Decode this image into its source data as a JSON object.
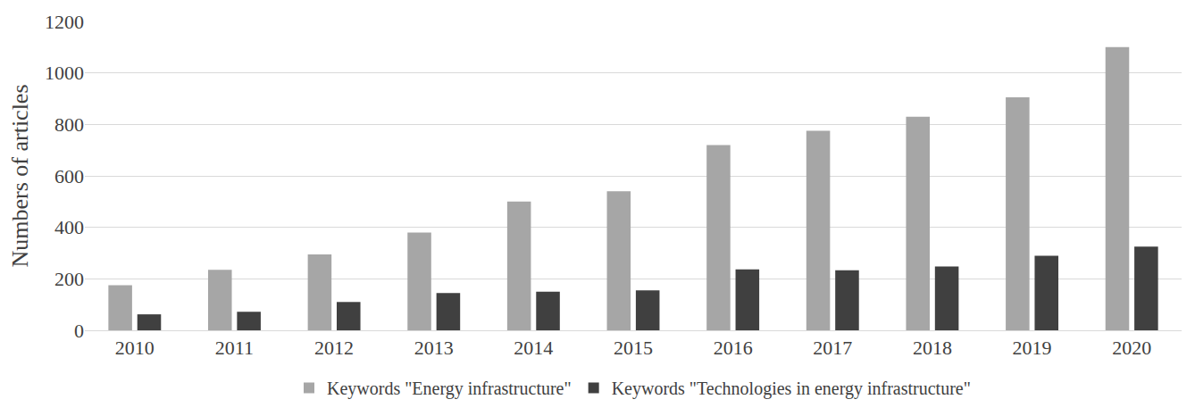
{
  "chart_data": {
    "type": "bar",
    "y_label": "Numbers of articles",
    "categories": [
      "2010",
      "2011",
      "2012",
      "2013",
      "2014",
      "2015",
      "2016",
      "2017",
      "2018",
      "2019",
      "2020"
    ],
    "series": [
      {
        "name": "Keywords \"Energy infrastructure\"",
        "color": "#a6a6a6",
        "values": [
          175,
          235,
          295,
          380,
          500,
          540,
          720,
          775,
          830,
          905,
          1100
        ]
      },
      {
        "name": "Keywords \"Technologies in energy infrastructure\"",
        "color": "#404040",
        "values": [
          62,
          72,
          110,
          145,
          150,
          155,
          237,
          233,
          248,
          290,
          325
        ]
      }
    ],
    "ylim": [
      0,
      1200
    ],
    "yticks": [
      0,
      200,
      400,
      600,
      800,
      1000,
      1200
    ],
    "grid": true,
    "legend": "bottom"
  }
}
